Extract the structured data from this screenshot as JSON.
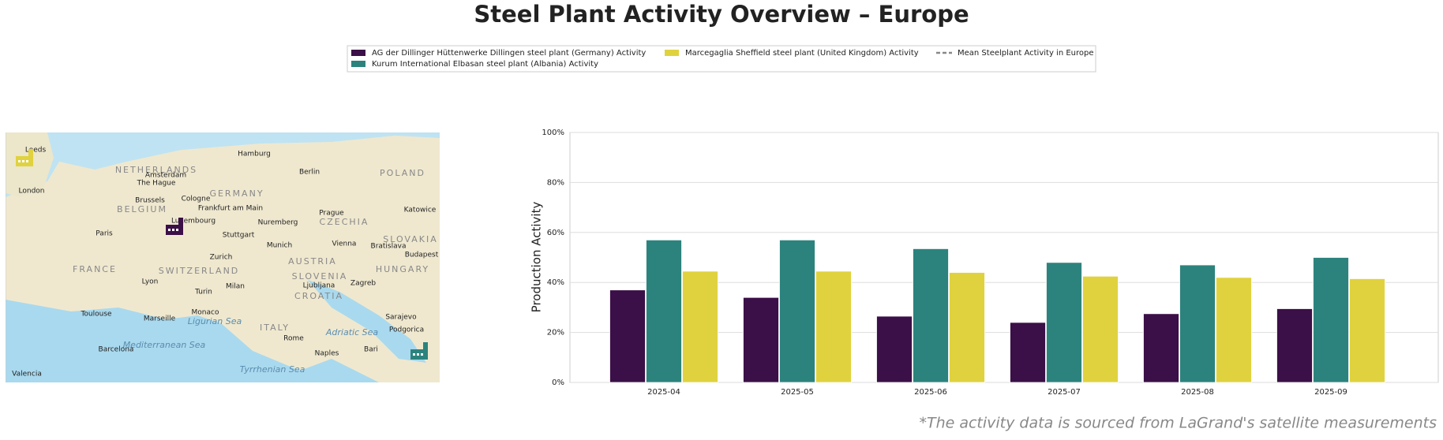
{
  "chart_data": {
    "type": "bar",
    "title": "Steel Plant Activity Overview – Europe",
    "y_label": "Production Activity",
    "footnote": "*The activity data is sourced from LaGrand's satellite measurements",
    "categories": [
      "2025-04",
      "2025-05",
      "2025-06",
      "2025-07",
      "2025-08",
      "2025-09"
    ],
    "series": [
      {
        "name": "AG der Dillinger Hüttenwerke Dillingen steel plant (Germany) Activity",
        "color": "#3b0f47",
        "values": [
          37,
          34,
          26.5,
          24,
          27.5,
          29.5
        ]
      },
      {
        "name": "Kurum International Elbasan steel plant (Albania) Activity",
        "color": "#2c837d",
        "values": [
          57,
          57,
          53.5,
          48,
          47,
          50
        ]
      },
      {
        "name": "Marcegaglia Sheffield steel plant (United Kingdom) Activity",
        "color": "#e0d23e",
        "values": [
          44.5,
          44.5,
          44,
          42.5,
          42,
          41.5
        ]
      }
    ],
    "mean_legend": {
      "name": "Mean Steelplant Activity in Europe",
      "color": "#888888"
    },
    "ylim": [
      0,
      100
    ],
    "yticks": [
      {
        "value": 0,
        "label": "0%"
      },
      {
        "value": 20,
        "label": "20%"
      },
      {
        "value": 40,
        "label": "40%"
      },
      {
        "value": 60,
        "label": "60%"
      },
      {
        "value": 80,
        "label": "80%"
      },
      {
        "value": 100,
        "label": "100%"
      }
    ],
    "grid": true,
    "map_labels": [
      "Leeds",
      "London",
      "NETHERLANDS",
      "Amsterdam",
      "The Hague",
      "Hamburg",
      "Berlin",
      "POLAND",
      "Brussels",
      "Cologne",
      "GERMANY",
      "BELGIUM",
      "Frankfurt am Main",
      "Luxembourg",
      "Paris",
      "Stuttgart",
      "Nuremberg",
      "Prague",
      "CZECHIA",
      "Katowice",
      "Munich",
      "Vienna",
      "Bratislava",
      "SLOVAKIA",
      "Budapest",
      "Zurich",
      "SWITZERLAND",
      "FRANCE",
      "AUSTRIA",
      "HUNGARY",
      "Lyon",
      "Turin",
      "Milan",
      "SLOVENIA",
      "Ljubljana",
      "Zagreb",
      "CROATIA",
      "Toulouse",
      "Marseille",
      "Monaco",
      "Ligurian Sea",
      "ITALY",
      "Sarajevo",
      "Adriatic Sea",
      "Podgorica",
      "Rome",
      "Mediterranean Sea",
      "Barcelona",
      "Naples",
      "Bari",
      "Tyrrhenian Sea",
      "Valencia"
    ]
  }
}
